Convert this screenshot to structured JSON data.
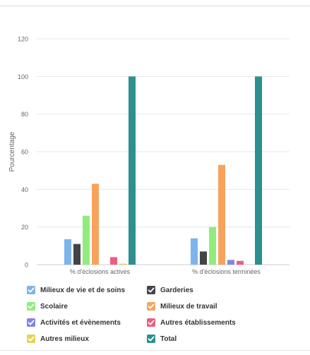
{
  "chart_data": {
    "type": "bar",
    "title": "",
    "xlabel": "",
    "ylabel": "Pourcentage",
    "ylim": [
      0,
      120
    ],
    "yticks": [
      0,
      20,
      40,
      60,
      80,
      100,
      120
    ],
    "grid": true,
    "legend_position": "bottom",
    "categories": [
      "% d'éclosions actives",
      "% d'éclosions terminées"
    ],
    "series": [
      {
        "name": "Milieux de vie et de soins",
        "color": "#7cb5ec",
        "values": [
          13.5,
          14
        ]
      },
      {
        "name": "Garderies",
        "color": "#434348",
        "values": [
          11,
          7
        ]
      },
      {
        "name": "Scolaire",
        "color": "#90ed7d",
        "values": [
          26,
          20
        ]
      },
      {
        "name": "Milieux de travail",
        "color": "#f7a35c",
        "values": [
          43,
          53
        ]
      },
      {
        "name": "Activités et évènements",
        "color": "#8085e9",
        "values": [
          0,
          2.5
        ]
      },
      {
        "name": "Autres établissements",
        "color": "#f15c80",
        "values": [
          4,
          2
        ]
      },
      {
        "name": "Autres milieux",
        "color": "#e4d354",
        "values": [
          0.5,
          0
        ]
      },
      {
        "name": "Total",
        "color": "#2b908f",
        "values": [
          100,
          100
        ]
      }
    ]
  }
}
